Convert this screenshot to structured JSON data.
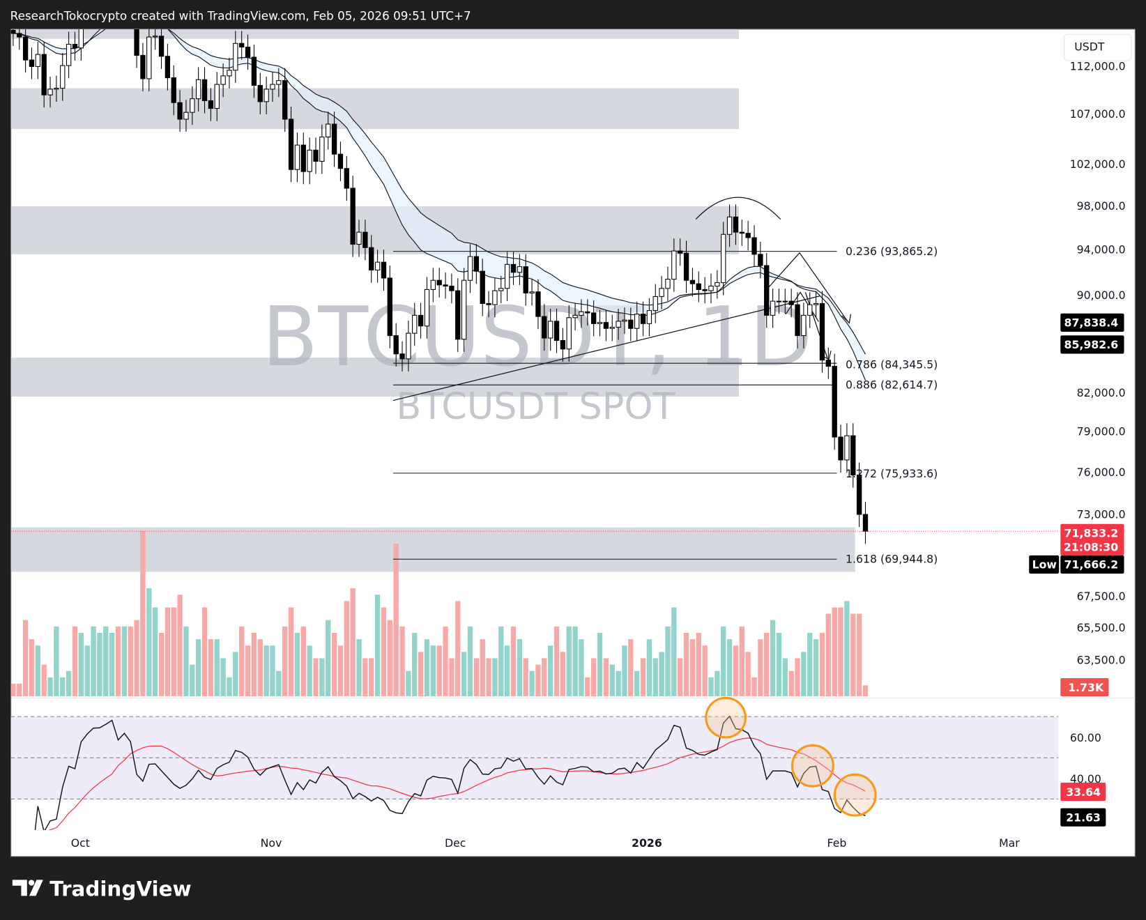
{
  "header": {
    "title": "ResearchTokocrypto created with TradingView.com, Feb 05, 2026 09:51 UTC+7"
  },
  "watermark": {
    "symbol": "BTCUSDT, 1D",
    "subtitle": "BTCUSDT SPOT"
  },
  "footer": {
    "logo": "TradingView"
  },
  "currency_button": "USDT",
  "colors": {
    "up": "#089981",
    "down": "#f23645",
    "vol_up": "#92d3cb",
    "vol_down": "#f7a9a7",
    "zone": "#d1d4dc",
    "rsi_band": "#efebf8",
    "rsi_ma": "#f23645",
    "circle": "#f59a1b"
  },
  "chart_data": {
    "type": "candlestick",
    "symbol": "BTCUSDT",
    "interval": "1D",
    "y_scale": "log",
    "start_date": "2025-09-20",
    "closes": [
      115.6,
      115.2,
      112.7,
      112.0,
      113.3,
      109.0,
      109.6,
      109.7,
      112.1,
      114.4,
      114.0,
      118.6,
      120.6,
      122.3,
      122.4,
      123.5,
      124.8,
      121.4,
      123.3,
      121.7,
      113.2,
      110.7,
      115.2,
      115.3,
      113.1,
      110.8,
      108.2,
      106.5,
      107.2,
      108.6,
      110.6,
      108.4,
      107.6,
      110.1,
      111.0,
      111.6,
      114.5,
      114.1,
      113.0,
      110.0,
      108.3,
      109.6,
      110.1,
      110.5,
      106.5,
      101.5,
      103.9,
      101.3,
      103.4,
      102.3,
      104.7,
      106.0,
      103.0,
      101.6,
      99.7,
      94.5,
      95.6,
      94.2,
      92.2,
      92.9,
      91.5,
      86.6,
      85.1,
      84.7,
      86.8,
      88.3,
      87.4,
      90.5,
      91.3,
      90.9,
      90.8,
      90.4,
      86.3,
      91.3,
      93.4,
      92.1,
      89.3,
      89.2,
      90.4,
      90.6,
      92.7,
      92.0,
      92.5,
      90.2,
      90.3,
      88.2,
      86.4,
      87.8,
      86.2,
      85.5,
      88.1,
      88.3,
      88.6,
      88.5,
      87.6,
      87.7,
      87.2,
      87.3,
      87.8,
      87.9,
      87.2,
      88.4,
      87.6,
      88.7,
      89.9,
      90.6,
      91.4,
      93.9,
      93.7,
      91.3,
      91.0,
      90.5,
      90.4,
      90.8,
      91.1,
      95.4,
      97.0,
      95.6,
      95.5,
      95.1,
      93.6,
      92.6,
      88.3,
      89.5,
      89.5,
      89.5,
      89.2,
      86.6,
      88.3,
      89.2,
      89.3,
      84.6,
      84.1,
      78.6,
      76.9,
      78.7,
      75.8,
      73.0,
      71.8332
    ],
    "close_unit": "thousand USDT",
    "volumes_k": [
      2,
      2,
      12,
      9,
      8,
      5,
      3,
      11,
      3,
      4,
      11,
      10,
      8,
      11,
      10,
      11,
      10,
      11,
      11,
      11,
      12,
      26,
      17,
      14,
      10,
      14,
      14,
      16,
      11,
      5,
      9,
      14,
      9,
      9,
      6,
      3,
      7,
      11,
      8,
      10,
      9,
      8,
      8,
      4,
      11,
      14,
      10,
      11,
      8,
      6,
      6,
      12,
      10,
      8,
      15,
      17,
      9,
      6,
      6,
      16,
      14,
      12,
      24,
      11,
      4,
      10,
      7,
      9,
      8,
      8,
      11,
      6,
      15,
      7,
      11,
      6,
      9,
      6,
      6,
      11,
      8,
      11,
      9,
      6,
      4,
      5,
      6,
      8,
      11,
      7,
      11,
      11,
      9,
      3,
      6,
      10,
      6,
      5,
      4,
      8,
      9,
      4,
      6,
      9,
      6,
      7,
      11,
      14,
      6,
      10,
      9,
      10,
      8,
      3,
      4,
      11,
      9,
      8,
      11,
      7,
      3,
      9,
      10,
      12,
      10,
      6,
      4,
      6,
      7,
      10,
      9,
      10,
      13,
      14,
      14,
      15,
      13,
      13,
      1.73
    ],
    "price_ticks": [
      "112,000.0",
      "107,000.0",
      "102,000.0",
      "98,000.0",
      "94,000.0",
      "90,000.0",
      "82,000.0",
      "79,000.0",
      "76,000.0",
      "73,000.0",
      "67,500.0",
      "65,500.0",
      "63,500.0"
    ],
    "price_tick_values": [
      112000,
      107000,
      102000,
      98000,
      94000,
      90000,
      82000,
      79000,
      76000,
      73000,
      67500,
      65500,
      63500
    ],
    "time_labels": [
      "Oct",
      "Nov",
      "Dec",
      "2026",
      "Feb",
      "Mar"
    ],
    "rsi_ticks": [
      "60.00",
      "40.00"
    ],
    "rsi_levels": [
      70,
      50,
      30
    ],
    "fib_levels": [
      {
        "label": "0.236 (93,865.2)",
        "price": 93865.2
      },
      {
        "label": "0.786 (84,345.5)",
        "price": 84345.5
      },
      {
        "label": "0.886 (82,614.7)",
        "price": 82614.7
      },
      {
        "label": "1.272 (75,933.6)",
        "price": 75933.6
      },
      {
        "label": "1.618 (69,944.8)",
        "price": 69944.8
      }
    ],
    "zones": [
      [
        115000,
        116500
      ],
      [
        105500,
        109700
      ],
      [
        93600,
        98000
      ],
      [
        81700,
        84800
      ],
      [
        69100,
        72100
      ]
    ],
    "labels": {
      "ma1": "87,838.4",
      "ma2": "85,982.6",
      "last_price": "71,833.2",
      "countdown": "21:08:30",
      "low_label": "Low",
      "low": "71,666.2",
      "volume": "1.73K",
      "rsi_ma": "33.64",
      "rsi": "21.63"
    }
  }
}
